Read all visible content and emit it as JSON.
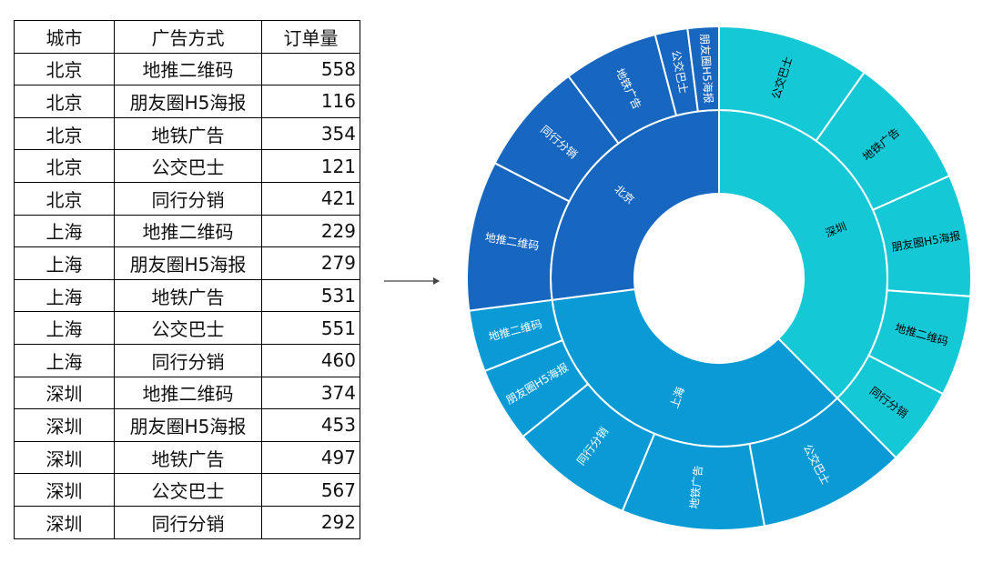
{
  "table": {
    "header": [
      "城市",
      "广告方式",
      "订单量"
    ],
    "rows": [
      [
        "北京",
        "地推二维码",
        558
      ],
      [
        "北京",
        "朋友圈H5海报",
        116
      ],
      [
        "北京",
        "地铁广告",
        354
      ],
      [
        "北京",
        "公交巴士",
        121
      ],
      [
        "北京",
        "同行分销",
        421
      ],
      [
        "上海",
        "地推二维码",
        229
      ],
      [
        "上海",
        "朋友圈H5海报",
        279
      ],
      [
        "上海",
        "地铁广告",
        531
      ],
      [
        "上海",
        "公交巴士",
        551
      ],
      [
        "上海",
        "同行分销",
        460
      ],
      [
        "深圳",
        "地推二维码",
        374
      ],
      [
        "深圳",
        "朋友圈H5海报",
        453
      ],
      [
        "深圳",
        "地铁广告",
        497
      ],
      [
        "深圳",
        "公交巴士",
        567
      ],
      [
        "深圳",
        "同行分销",
        292
      ]
    ]
  },
  "chart_data": {
    "type": "sunburst",
    "categories": [
      "深圳",
      "上海",
      "北京"
    ],
    "colors": [
      "#14c8d6",
      "#0a9ad6",
      "#1767c0"
    ],
    "label_colors": [
      "#000000",
      "#ffffff",
      "#ffffff"
    ],
    "children": [
      {
        "labels": [
          "公交巴士",
          "地铁广告",
          "朋友圈H5海报",
          "地推二维码",
          "同行分销"
        ],
        "values": [
          567,
          497,
          453,
          374,
          292
        ]
      },
      {
        "labels": [
          "公交巴士",
          "地铁广告",
          "同行分销",
          "朋友圈H5海报",
          "地推二维码"
        ],
        "values": [
          551,
          531,
          460,
          279,
          229
        ]
      },
      {
        "labels": [
          "地推二维码",
          "同行分销",
          "地铁广告",
          "公交巴士",
          "朋友圈H5海报"
        ],
        "values": [
          558,
          421,
          354,
          121,
          116
        ]
      }
    ]
  }
}
